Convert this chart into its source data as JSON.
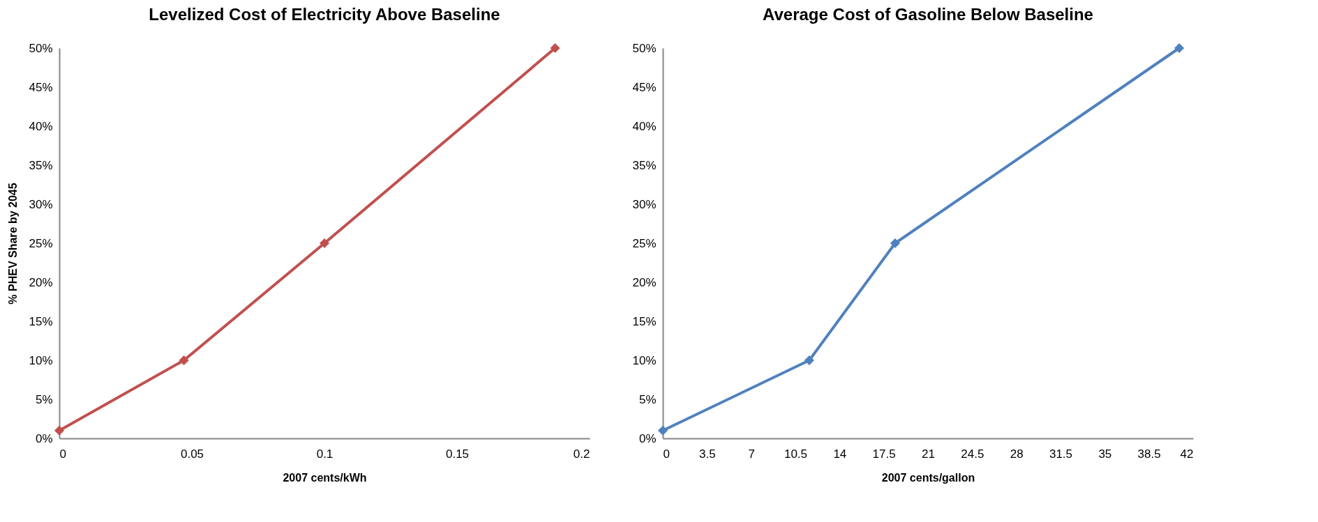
{
  "chart_data": [
    {
      "type": "line",
      "title": "Levelized Cost of Electricity Above Baseline",
      "xlabel": "2007 cents/kWh",
      "ylabel": "% PHEV Share by 2045",
      "x": [
        0,
        0.047,
        0.1,
        0.187
      ],
      "series": [
        {
          "color": "#c0504d",
          "values": [
            1,
            10,
            25,
            50
          ]
        }
      ],
      "xlim": [
        0,
        0.2
      ],
      "xticks": [
        0,
        0.05,
        0.1,
        0.15,
        0.2
      ],
      "ylim": [
        0,
        50
      ],
      "yticks": [
        {
          "value": 0,
          "label": "0%"
        },
        {
          "value": 5,
          "label": "5%"
        },
        {
          "value": 10,
          "label": "10%"
        },
        {
          "value": 15,
          "label": "15%"
        },
        {
          "value": 20,
          "label": "20%"
        },
        {
          "value": 25,
          "label": "25%"
        },
        {
          "value": 30,
          "label": "30%"
        },
        {
          "value": 35,
          "label": "35%"
        },
        {
          "value": 40,
          "label": "40%"
        },
        {
          "value": 45,
          "label": "45%"
        },
        {
          "value": 50,
          "label": "50%"
        }
      ],
      "grid": false,
      "marker": "diamond",
      "line_style": "solid"
    },
    {
      "type": "line",
      "title": "Average Cost of Gasoline Below Baseline",
      "xlabel": "2007 cents/gallon",
      "x": [
        0,
        11.6,
        18.4,
        40.9
      ],
      "series": [
        {
          "color": "#4f81bd",
          "values": [
            1,
            10,
            25,
            50
          ]
        }
      ],
      "xlim": [
        0,
        42
      ],
      "xticks": [
        0,
        3.5,
        7,
        10.5,
        14,
        17.5,
        21,
        24.5,
        28,
        31.5,
        35,
        38.5,
        42
      ],
      "ylim": [
        0,
        50
      ],
      "yticks": [
        {
          "value": 0,
          "label": "0%"
        },
        {
          "value": 5,
          "label": "5%"
        },
        {
          "value": 10,
          "label": "10%"
        },
        {
          "value": 15,
          "label": "15%"
        },
        {
          "value": 20,
          "label": "20%"
        },
        {
          "value": 25,
          "label": "25%"
        },
        {
          "value": 30,
          "label": "30%"
        },
        {
          "value": 35,
          "label": "35%"
        },
        {
          "value": 40,
          "label": "40%"
        },
        {
          "value": 45,
          "label": "45%"
        },
        {
          "value": 50,
          "label": "50%"
        }
      ],
      "grid": false,
      "marker": "diamond",
      "line_style": "solid"
    }
  ]
}
